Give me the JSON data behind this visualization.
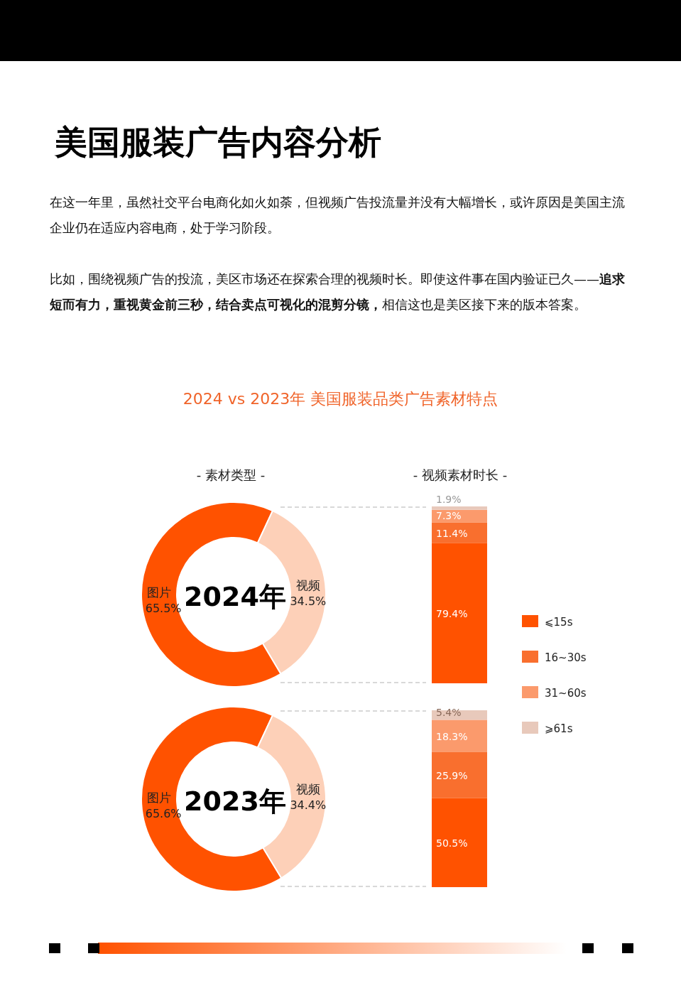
{
  "chart_data": [
    {
      "type": "other",
      "title": "美国服装广告内容分析",
      "subtitle": "2024 vs 2023年 美国服装品类广告素材特点",
      "annotations": [
        "在这一年里，虽然社交平台电商化如火如荼，但视频广告投流量并没有大幅增长，或许原因是美国主流企业仍在适应内容电商，处于学习阶段。",
        "比如，围绕视频广告的投流，美区市场还在探索合理的视频时长。即使这件事在国内验证已久——",
        "追求短而有力，重视黄金前三秒，结合卖点可视化的混剪分镜，",
        "相信这也是美区接下来的版本答案。"
      ]
    },
    {
      "type": "donut",
      "title": "- 素材类型 -",
      "annotations": [
        "2024年"
      ],
      "categories": [
        "图片",
        "视频"
      ],
      "values": [
        65.5,
        34.5
      ],
      "value_labels": [
        "65.5%",
        "34.5%"
      ],
      "colors": [
        "#ff5200",
        "#fdd0b8"
      ]
    },
    {
      "type": "bar",
      "title": "- 视频素材时长 -",
      "stacked": true,
      "categories": [
        null
      ],
      "legend": "right",
      "series": [
        {
          "name": "⩽15s",
          "color": "#ff5200",
          "values": [
            79.4
          ],
          "value_labels": [
            "79.4%"
          ]
        },
        {
          "name": "16~30s",
          "color": "#f96f2e",
          "values": [
            11.4
          ],
          "value_labels": [
            "11.4%"
          ]
        },
        {
          "name": "31~60s",
          "color": "#fb9a6c",
          "values": [
            7.3
          ],
          "value_labels": [
            "7.3%"
          ]
        },
        {
          "name": "⩾61s",
          "color": "#e8c9bb",
          "values": [
            1.9
          ],
          "value_labels": [
            "1.9%"
          ]
        }
      ]
    },
    {
      "type": "donut",
      "annotations": [
        "2023年"
      ],
      "categories": [
        "图片",
        "视频"
      ],
      "values": [
        65.6,
        34.4
      ],
      "value_labels": [
        "65.6%",
        "34.4%"
      ],
      "colors": [
        "#ff5200",
        "#fdd0b8"
      ]
    },
    {
      "type": "bar",
      "stacked": true,
      "categories": [
        null
      ],
      "series": [
        {
          "color": "#ff5200",
          "values": [
            50.5
          ],
          "value_labels": [
            "50.5%"
          ]
        },
        {
          "color": "#f96f2e",
          "values": [
            25.9
          ],
          "value_labels": [
            "25.9%"
          ]
        },
        {
          "color": "#fb9a6c",
          "values": [
            18.3
          ],
          "value_labels": [
            "18.3%"
          ]
        },
        {
          "color": "#e8c9bb",
          "values": [
            5.4
          ],
          "value_labels": [
            "5.4%"
          ]
        }
      ]
    }
  ]
}
